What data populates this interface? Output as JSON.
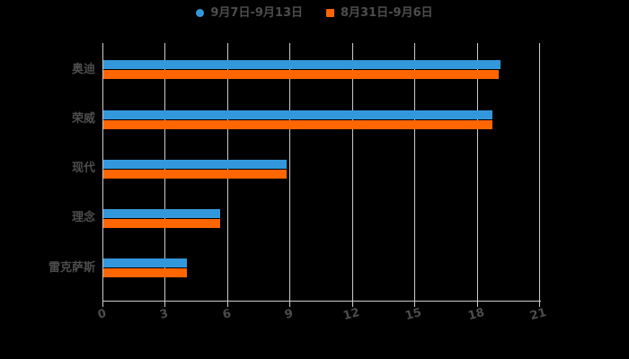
{
  "legend": {
    "items": [
      {
        "label": "9月7日-9月13日",
        "color": "#3398db",
        "shape": "circle"
      },
      {
        "label": "8月31日-9月6日",
        "color": "#ff6600",
        "shape": "square"
      }
    ]
  },
  "colors": {
    "background": "#000000",
    "series_blue": "#3398db",
    "series_orange": "#ff6600",
    "gridline": "#cccccc",
    "axis_line": "#cccccc",
    "text": "#4d4d4d"
  },
  "chart_data": {
    "type": "bar",
    "orientation": "horizontal",
    "title": "",
    "xlabel": "",
    "ylabel": "",
    "categories": [
      "奥迪",
      "荣威",
      "现代",
      "理念",
      "雷克萨斯"
    ],
    "series": [
      {
        "name": "9月7日-9月13日",
        "color": "#3398db",
        "values": [
          19.1,
          18.7,
          8.8,
          5.6,
          4.0
        ]
      },
      {
        "name": "8月31日-9月6日",
        "color": "#ff6600",
        "values": [
          19.0,
          18.7,
          8.8,
          5.6,
          4.0
        ]
      }
    ],
    "x_ticks": [
      0,
      3,
      6,
      9,
      12,
      15,
      18,
      21
    ],
    "xlim": [
      0,
      21
    ],
    "grid": true,
    "legend_position": "top"
  }
}
